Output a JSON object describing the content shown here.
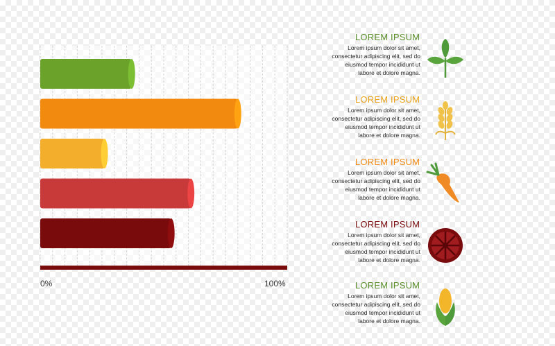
{
  "chart_data": {
    "type": "bar",
    "orientation": "horizontal",
    "categories": [
      "",
      "",
      "",
      "",
      ""
    ],
    "values": [
      37,
      80,
      26,
      61,
      53
    ],
    "colors": [
      "#6aa22a",
      "#f28a0f",
      "#f3ae2c",
      "#c8393a",
      "#7a0b0d"
    ],
    "xlim": [
      0,
      100
    ],
    "grid": true,
    "xticks": [
      "0%",
      "100%"
    ]
  },
  "axis": {
    "min_label": "0%",
    "max_label": "100%",
    "baseline_color": "#7a0b0d"
  },
  "legend": [
    {
      "title": "LOREM IPSUM",
      "color": "#5a8f2a",
      "icon": "sprout-icon",
      "lines": [
        "Lorem ipsum dolor sit amet,",
        "consectetur adipiscing elit, sed do",
        "eiusmod tempor incididunt ut",
        "labore et dolore magna."
      ]
    },
    {
      "title": "LOREM IPSUM",
      "color": "#e8a31b",
      "icon": "wheat-icon",
      "lines": [
        "Lorem ipsum dolor sit amet,",
        "consectetur adipiscing elit, sed do",
        "eiusmod tempor incididunt ut",
        "labore et dolore magna."
      ]
    },
    {
      "title": "LOREM IPSUM",
      "color": "#f08a12",
      "icon": "carrot-icon",
      "lines": [
        "Lorem ipsum dolor sit amet,",
        "consectetur adipiscing elit, sed do",
        "eiusmod tempor incididunt ut",
        "labore et dolore magna."
      ]
    },
    {
      "title": "LOREM IPSUM",
      "color": "#7a0b0d",
      "icon": "tomato-slice-icon",
      "lines": [
        "Lorem ipsum dolor sit amet,",
        "consectetur adipiscing elit, sed do",
        "eiusmod tempor incididunt ut",
        "labore et dolore magna."
      ]
    },
    {
      "title": "LOREM IPSUM",
      "color": "#5a8f2a",
      "icon": "corn-icon",
      "lines": [
        "Lorem ipsum dolor sit amet,",
        "consectetur adipiscing elit, sed do",
        "eiusmod tempor incididunt ut",
        "labore et dolore magna."
      ]
    }
  ]
}
